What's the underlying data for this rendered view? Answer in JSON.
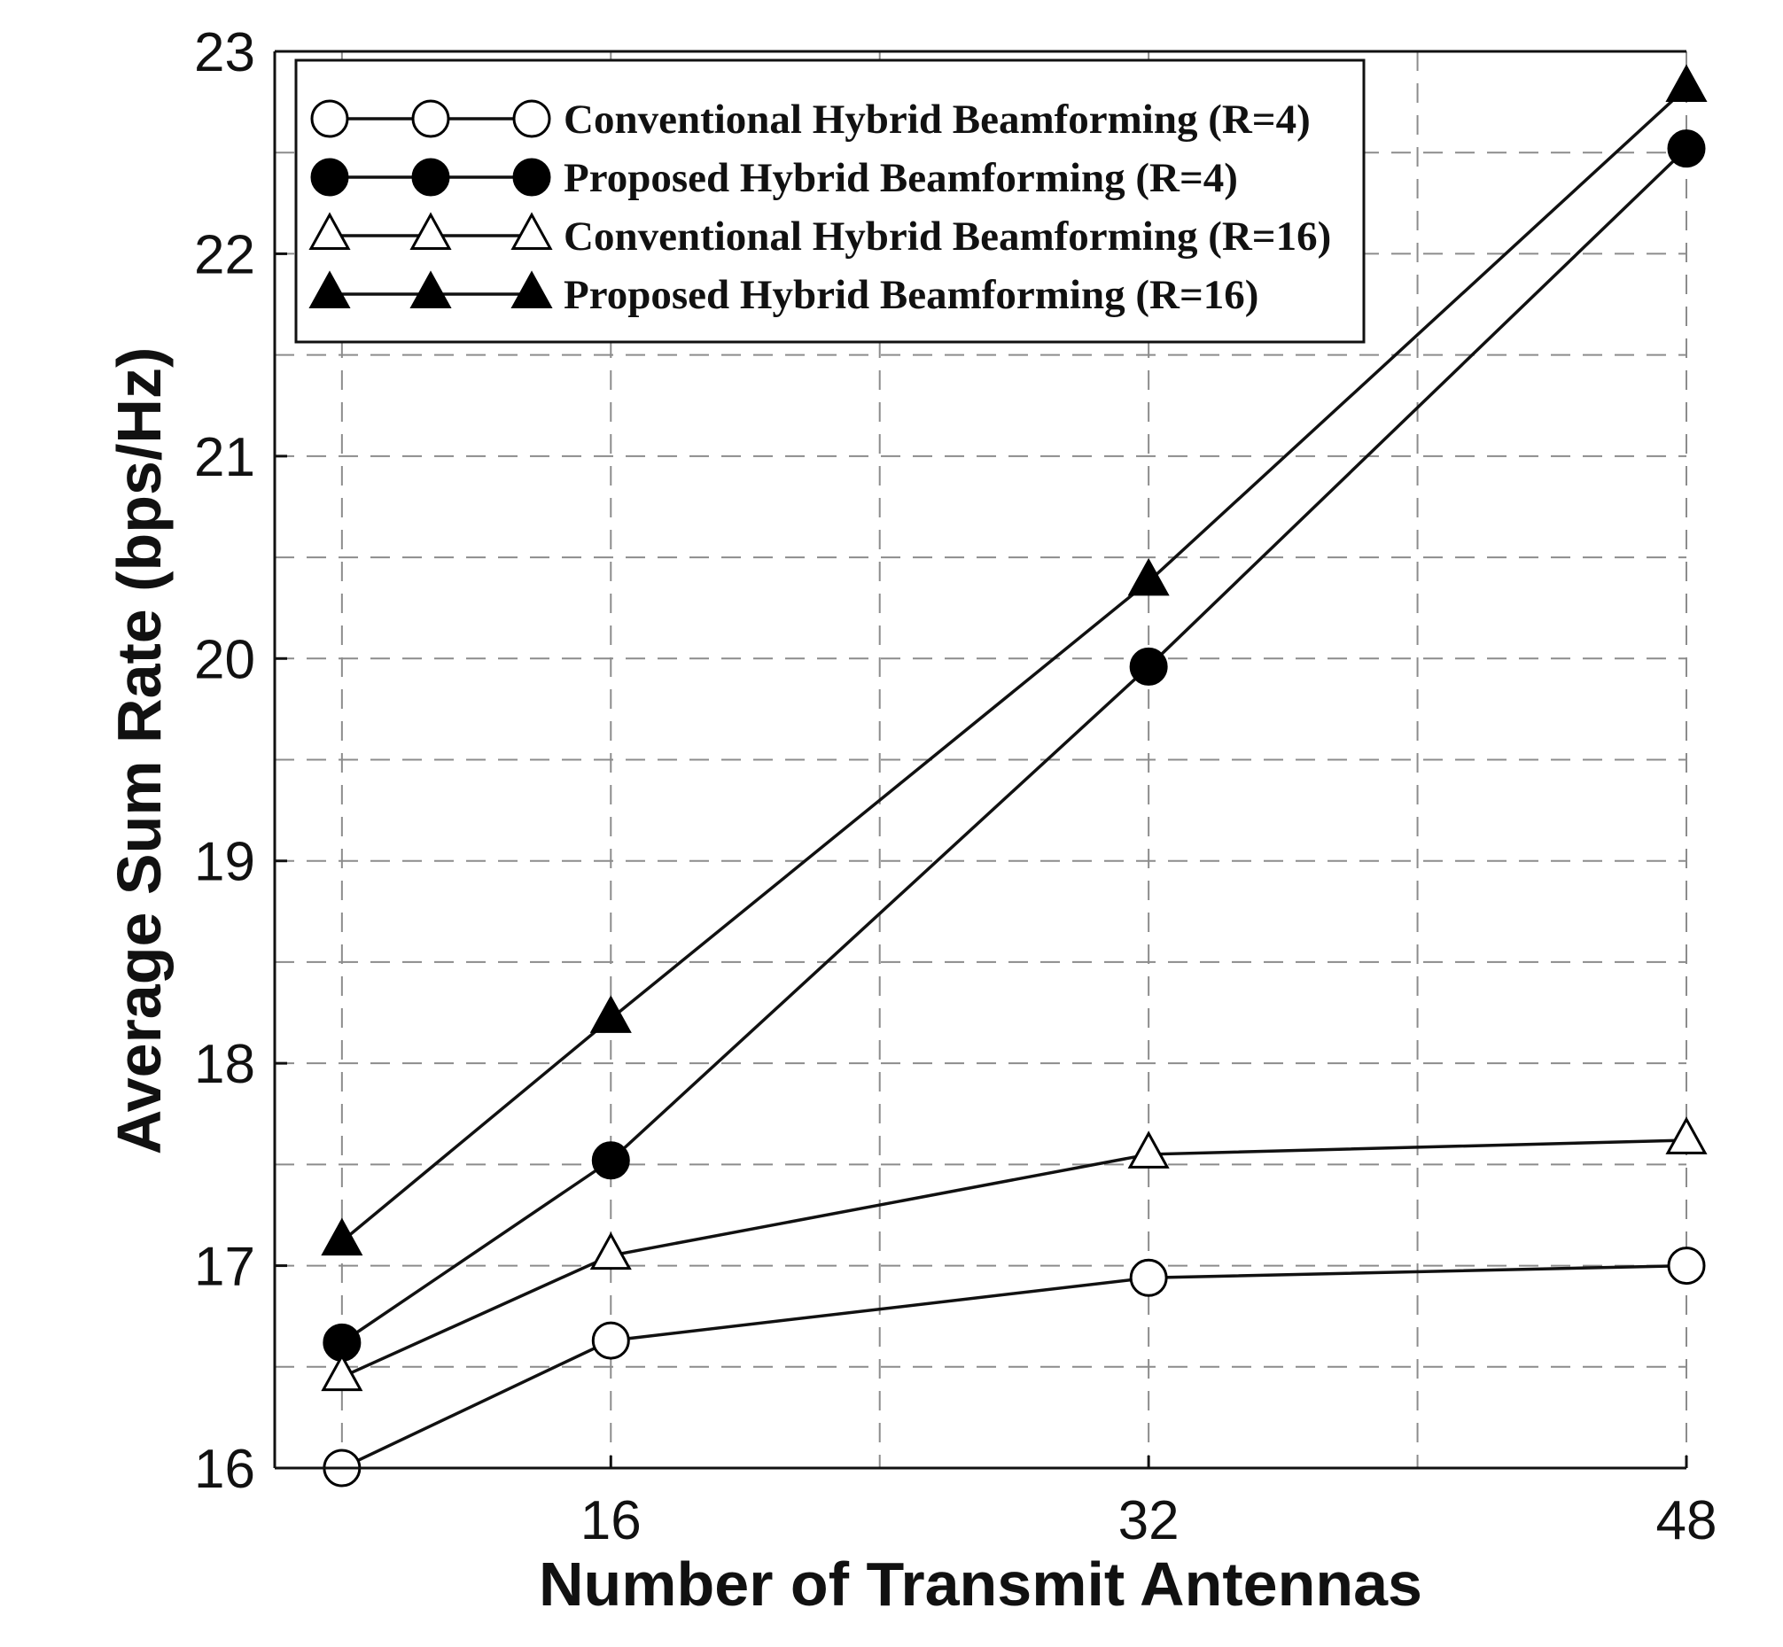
{
  "chart_data": {
    "type": "line",
    "title": "",
    "xlabel": "Number of Transmit Antennas",
    "ylabel": "Average Sum Rate (bps/Hz)",
    "xlim": [
      6,
      48
    ],
    "ylim": [
      16,
      23
    ],
    "xticks": [
      16,
      32,
      48
    ],
    "yticks": [
      16,
      17,
      18,
      19,
      20,
      21,
      22,
      23
    ],
    "x_grid": [
      8,
      16,
      24,
      32,
      40,
      48
    ],
    "y_grid": [
      16,
      16.5,
      17,
      17.5,
      18,
      18.5,
      19,
      19.5,
      20,
      20.5,
      21,
      21.5,
      22,
      22.5,
      23
    ],
    "grid": true,
    "legend_position": "top-left",
    "series": [
      {
        "name": "Conventional Hybrid Beamforming (R=4)",
        "marker": "circle-open",
        "x": [
          8,
          16,
          32,
          48
        ],
        "values": [
          16.0,
          16.63,
          16.94,
          17.0
        ]
      },
      {
        "name": "Proposed Hybrid Beamforming (R=4)",
        "marker": "circle-filled",
        "x": [
          8,
          16,
          32,
          48
        ],
        "values": [
          16.62,
          17.52,
          19.96,
          22.52
        ]
      },
      {
        "name": "Conventional Hybrid Beamforming (R=16)",
        "marker": "triangle-open",
        "x": [
          8,
          16,
          32,
          48
        ],
        "values": [
          16.45,
          17.05,
          17.55,
          17.62
        ]
      },
      {
        "name": "Proposed Hybrid Beamforming (R=16)",
        "marker": "triangle-filled",
        "x": [
          8,
          16,
          32,
          48
        ],
        "values": [
          17.12,
          18.22,
          20.38,
          22.82
        ]
      }
    ]
  }
}
